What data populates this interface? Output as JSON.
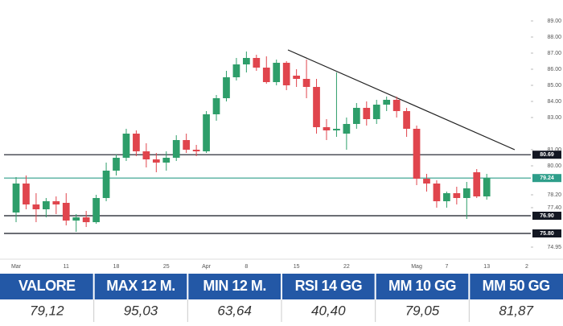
{
  "chart_data": {
    "type": "candlestick",
    "categories": [
      "Mar",
      null,
      null,
      null,
      null,
      "11",
      null,
      null,
      null,
      null,
      "18",
      null,
      null,
      null,
      null,
      "25",
      null,
      null,
      null,
      "Apr",
      null,
      null,
      null,
      "8",
      null,
      null,
      null,
      null,
      "15",
      null,
      null,
      null,
      null,
      "22",
      null,
      null,
      null,
      null,
      null,
      null,
      "Mag",
      null,
      null,
      "7",
      null,
      null,
      null,
      "13",
      null,
      null,
      null,
      "2"
    ],
    "open": [
      77.1,
      78.9,
      77.6,
      77.3,
      77.8,
      77.7,
      76.6,
      76.8,
      76.5,
      78.0,
      79.7,
      80.5,
      82.0,
      80.9,
      80.4,
      80.2,
      80.5,
      81.6,
      81.0,
      80.9,
      83.2,
      84.2,
      85.5,
      86.3,
      86.7,
      86.1,
      85.2,
      86.4,
      85.6,
      85.4,
      84.9,
      82.4,
      82.2,
      82.0,
      82.6,
      83.6,
      82.9,
      83.8,
      84.1,
      83.4,
      82.3,
      79.2,
      78.9,
      77.8,
      78.3,
      78.0,
      79.6,
      78.1,
      null,
      null,
      null,
      null
    ],
    "high": [
      79.3,
      79.4,
      78.3,
      78.0,
      78.1,
      78.3,
      77.0,
      77.2,
      78.2,
      80.2,
      80.7,
      82.3,
      82.2,
      81.4,
      80.8,
      80.9,
      81.9,
      82.0,
      81.3,
      83.4,
      84.4,
      85.9,
      86.7,
      87.1,
      86.9,
      86.8,
      86.6,
      86.5,
      86.0,
      86.6,
      85.4,
      82.9,
      85.8,
      83.0,
      83.9,
      84.0,
      84.1,
      84.3,
      84.3,
      83.6,
      82.5,
      79.5,
      79.1,
      78.4,
      78.7,
      79.0,
      79.8,
      79.5,
      null,
      null,
      null,
      null
    ],
    "low": [
      76.5,
      77.3,
      76.5,
      76.8,
      77.0,
      76.3,
      75.9,
      76.2,
      76.4,
      77.8,
      79.4,
      80.3,
      80.6,
      79.9,
      79.6,
      79.7,
      80.3,
      80.8,
      80.6,
      80.8,
      82.8,
      84.0,
      85.3,
      85.8,
      85.9,
      85.1,
      85.0,
      84.7,
      84.9,
      84.2,
      82.0,
      81.6,
      81.8,
      81.0,
      82.3,
      82.5,
      82.6,
      83.4,
      83.0,
      81.8,
      78.8,
      78.4,
      77.4,
      77.4,
      77.6,
      76.7,
      78.0,
      77.9,
      null,
      null,
      null,
      null
    ],
    "close": [
      78.9,
      77.6,
      77.3,
      77.8,
      77.6,
      76.6,
      76.8,
      76.5,
      78.0,
      79.7,
      80.5,
      82.0,
      80.9,
      80.4,
      80.2,
      80.5,
      81.6,
      81.0,
      80.9,
      83.2,
      84.2,
      85.5,
      86.3,
      86.7,
      86.1,
      85.2,
      86.4,
      85.0,
      85.4,
      84.9,
      82.4,
      82.2,
      82.3,
      82.6,
      83.6,
      82.9,
      83.8,
      84.1,
      83.4,
      82.3,
      79.2,
      78.9,
      77.8,
      78.3,
      78.0,
      78.6,
      78.1,
      79.24,
      null,
      null,
      null,
      null
    ],
    "up_color": "#2e9e6a",
    "down_color": "#e0454d",
    "ylim": [
      74.5,
      89.5
    ],
    "yticks": [
      {
        "value": 89,
        "label": "89.00"
      },
      {
        "value": 88,
        "label": "88.00"
      },
      {
        "value": 87,
        "label": "87.00"
      },
      {
        "value": 86,
        "label": "86.00"
      },
      {
        "value": 85,
        "label": "85.00"
      },
      {
        "value": 84,
        "label": "84.00"
      },
      {
        "value": 83,
        "label": "83.00"
      },
      {
        "value": 81,
        "label": "81.00"
      },
      {
        "value": 80,
        "label": "80.00"
      },
      {
        "value": 78.2,
        "label": "78.20"
      },
      {
        "value": 77.4,
        "label": "77.40"
      },
      {
        "value": 74.95,
        "label": "74.95"
      }
    ],
    "levels": [
      {
        "value": 80.69,
        "label": "80.69",
        "color": "#131722"
      },
      {
        "value": 79.24,
        "label": "79.24",
        "color": "#2e9e8a"
      },
      {
        "value": 76.9,
        "label": "76.90",
        "color": "#131722"
      },
      {
        "value": 75.8,
        "label": "75.80",
        "color": "#131722"
      }
    ]
  },
  "table": {
    "headers": [
      "VALORE",
      "MAX 12 M.",
      "MIN 12 M.",
      "RSI 14 GG",
      "MM 10 GG",
      "MM 50 GG"
    ],
    "values": [
      "79,12",
      "95,03",
      "63,64",
      "40,40",
      "79,05",
      "81,87"
    ]
  }
}
